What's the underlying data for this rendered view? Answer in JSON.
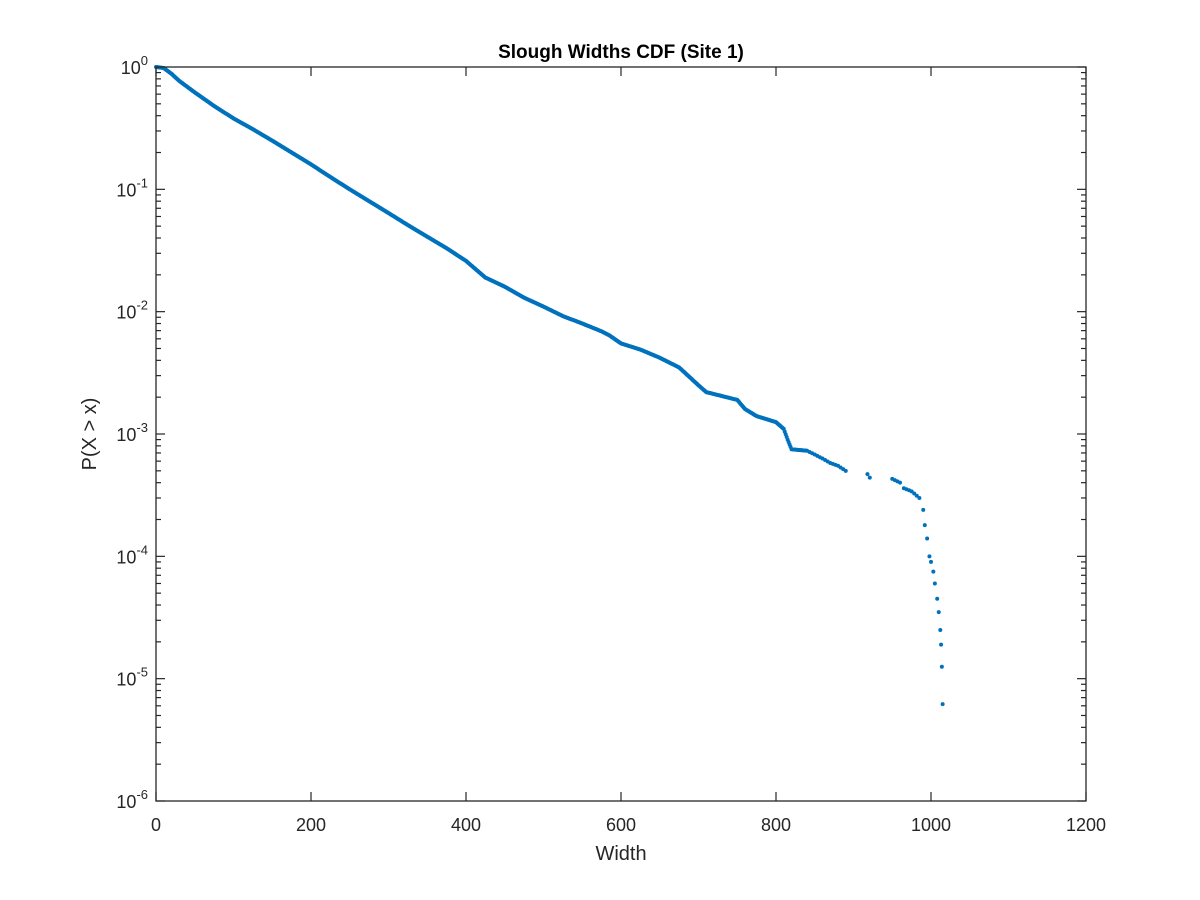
{
  "chart_data": {
    "type": "scatter",
    "title": "Slough Widths CDF (Site 1)",
    "xlabel": "Width",
    "ylabel": "P(X > x)",
    "xlim": [
      0,
      1200
    ],
    "ylim": [
      1e-06,
      1
    ],
    "yscale": "log",
    "grid": false,
    "x_ticks": [
      {
        "value": 0,
        "label": "0"
      },
      {
        "value": 200,
        "label": "200"
      },
      {
        "value": 400,
        "label": "400"
      },
      {
        "value": 600,
        "label": "600"
      },
      {
        "value": 800,
        "label": "800"
      },
      {
        "value": 1000,
        "label": "1000"
      },
      {
        "value": 1200,
        "label": "1200"
      }
    ],
    "y_ticks": [
      {
        "value": 1e-06,
        "base": "10",
        "exp": "-6"
      },
      {
        "value": 1e-05,
        "base": "10",
        "exp": "-5"
      },
      {
        "value": 0.0001,
        "base": "10",
        "exp": "-4"
      },
      {
        "value": 0.001,
        "base": "10",
        "exp": "-3"
      },
      {
        "value": 0.01,
        "base": "10",
        "exp": "-2"
      },
      {
        "value": 0.1,
        "base": "10",
        "exp": "-1"
      },
      {
        "value": 1,
        "base": "10",
        "exp": "0"
      }
    ],
    "series": [
      {
        "color": "#0072BD",
        "points": [
          [
            0,
            1.0
          ],
          [
            10,
            0.98
          ],
          [
            20,
            0.88
          ],
          [
            30,
            0.77
          ],
          [
            50,
            0.62
          ],
          [
            75,
            0.48
          ],
          [
            100,
            0.38
          ],
          [
            125,
            0.31
          ],
          [
            150,
            0.25
          ],
          [
            175,
            0.2
          ],
          [
            200,
            0.16
          ],
          [
            225,
            0.126
          ],
          [
            250,
            0.1
          ],
          [
            275,
            0.08
          ],
          [
            300,
            0.064
          ],
          [
            325,
            0.051
          ],
          [
            350,
            0.041
          ],
          [
            375,
            0.033
          ],
          [
            400,
            0.026
          ],
          [
            425,
            0.019
          ],
          [
            450,
            0.016
          ],
          [
            475,
            0.013
          ],
          [
            500,
            0.011
          ],
          [
            525,
            0.0092
          ],
          [
            550,
            0.008
          ],
          [
            575,
            0.0069
          ],
          [
            585,
            0.0064
          ],
          [
            600,
            0.0055
          ],
          [
            625,
            0.0049
          ],
          [
            650,
            0.0042
          ],
          [
            675,
            0.0035
          ],
          [
            700,
            0.0025
          ],
          [
            710,
            0.0022
          ],
          [
            750,
            0.0019
          ],
          [
            760,
            0.0016
          ],
          [
            775,
            0.0014
          ],
          [
            800,
            0.00125
          ],
          [
            810,
            0.0011
          ],
          [
            815,
            0.0009
          ],
          [
            820,
            0.00075
          ],
          [
            840,
            0.00073
          ],
          [
            850,
            0.00068
          ],
          [
            860,
            0.00063
          ],
          [
            870,
            0.00058
          ],
          [
            880,
            0.00055
          ],
          [
            890,
            0.0005
          ],
          [
            918,
            0.00047
          ],
          [
            921,
            0.00044
          ],
          [
            950,
            0.00043
          ],
          [
            960,
            0.0004
          ],
          [
            965,
            0.00036
          ],
          [
            975,
            0.00034
          ],
          [
            985,
            0.0003
          ],
          [
            990,
            0.00024
          ],
          [
            992,
            0.00018
          ],
          [
            995,
            0.00014
          ],
          [
            998,
            0.0001
          ],
          [
            1000,
            9e-05
          ],
          [
            1003,
            7.5e-05
          ],
          [
            1005,
            6e-05
          ],
          [
            1008,
            4.5e-05
          ],
          [
            1010,
            3.5e-05
          ],
          [
            1012,
            2.5e-05
          ],
          [
            1013,
            1.9e-05
          ],
          [
            1014,
            1.25e-05
          ],
          [
            1015,
            6.2e-06
          ]
        ]
      }
    ]
  }
}
